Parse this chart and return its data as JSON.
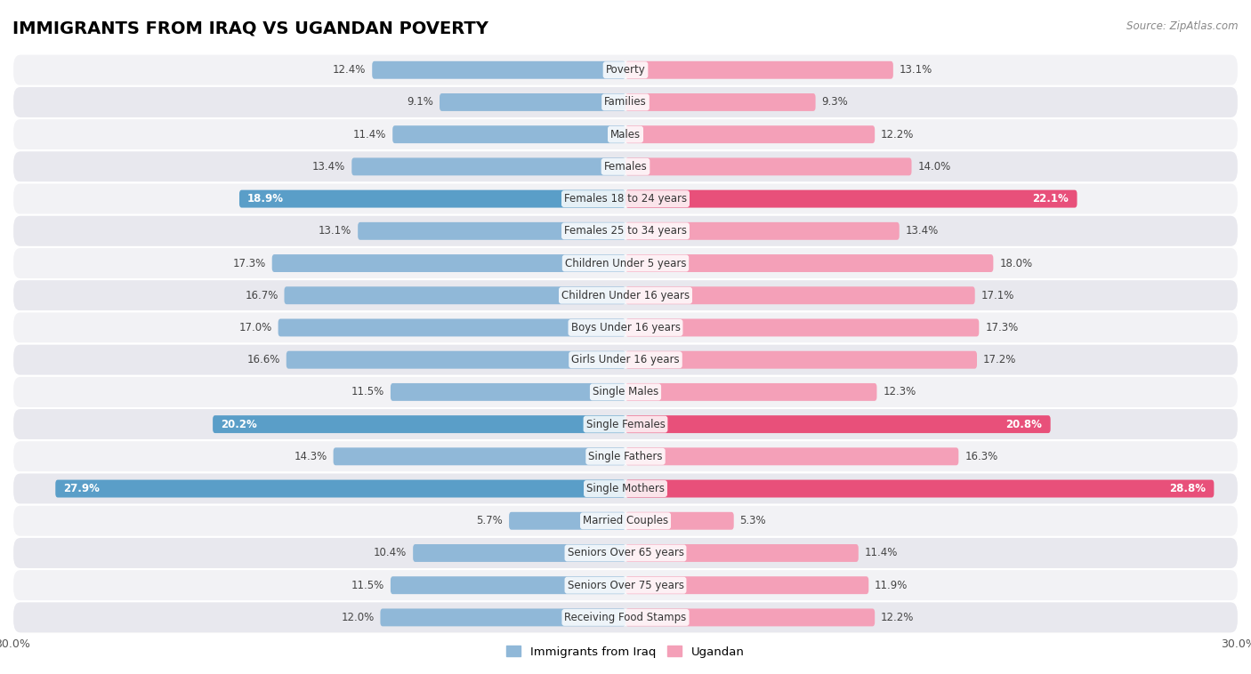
{
  "title": "IMMIGRANTS FROM IRAQ VS UGANDAN POVERTY",
  "source": "Source: ZipAtlas.com",
  "categories": [
    "Poverty",
    "Families",
    "Males",
    "Females",
    "Females 18 to 24 years",
    "Females 25 to 34 years",
    "Children Under 5 years",
    "Children Under 16 years",
    "Boys Under 16 years",
    "Girls Under 16 years",
    "Single Males",
    "Single Females",
    "Single Fathers",
    "Single Mothers",
    "Married Couples",
    "Seniors Over 65 years",
    "Seniors Over 75 years",
    "Receiving Food Stamps"
  ],
  "iraq_values": [
    12.4,
    9.1,
    11.4,
    13.4,
    18.9,
    13.1,
    17.3,
    16.7,
    17.0,
    16.6,
    11.5,
    20.2,
    14.3,
    27.9,
    5.7,
    10.4,
    11.5,
    12.0
  ],
  "uganda_values": [
    13.1,
    9.3,
    12.2,
    14.0,
    22.1,
    13.4,
    18.0,
    17.1,
    17.3,
    17.2,
    12.3,
    20.8,
    16.3,
    28.8,
    5.3,
    11.4,
    11.9,
    12.2
  ],
  "iraq_color": "#90b8d8",
  "iraq_highlight_color": "#5a9ec8",
  "uganda_color": "#f4a0b8",
  "uganda_highlight_color": "#e8507a",
  "highlight_rows": [
    4,
    11,
    13
  ],
  "x_max": 30.0,
  "legend_iraq": "Immigrants from Iraq",
  "legend_uganda": "Ugandan",
  "bar_height": 0.55,
  "row_colors": [
    "#f2f2f5",
    "#e8e8ee"
  ],
  "title_fontsize": 14,
  "label_fontsize": 8.5,
  "value_fontsize": 8.5,
  "tick_fontsize": 9
}
